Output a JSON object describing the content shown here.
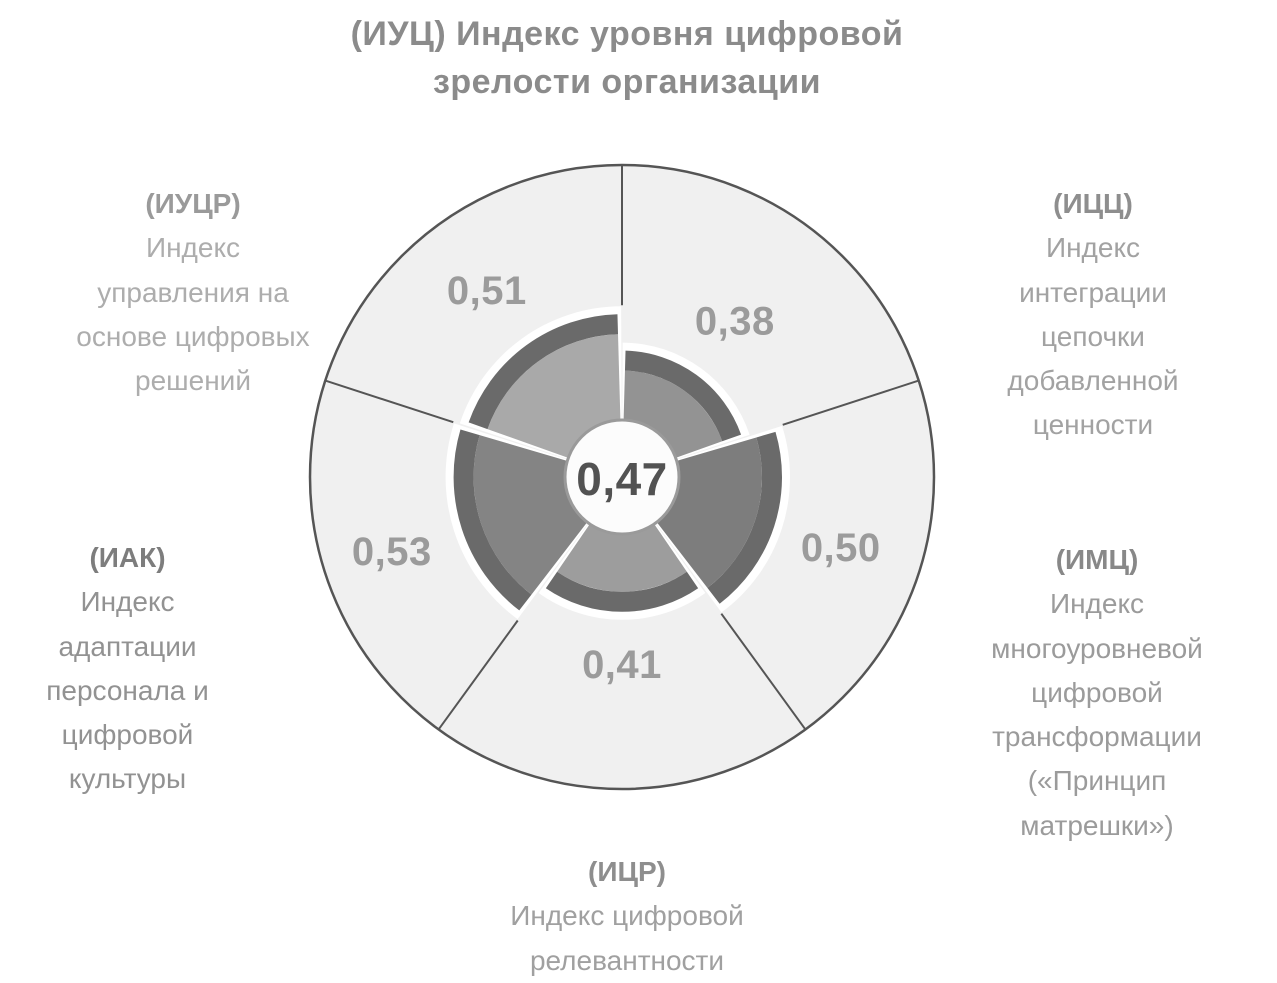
{
  "page": {
    "background": "#ffffff"
  },
  "chart_data": {
    "type": "pie",
    "subtype": "nightingale-rose-with-equal-sector-ring",
    "title": "(ИУЦ) Индекс уровня цифровой зрелости организации",
    "title_lines": [
      "(ИУЦ) Индекс уровня цифровой",
      "зрелости организации"
    ],
    "center_value": 0.47,
    "center_value_label": "0,47",
    "value_range": [
      0,
      1
    ],
    "legend_position": "around",
    "grid": false,
    "sectors": [
      {
        "abbr": "(ИЦЦ)",
        "label": "Индекс интеграции цепочки добавленной ценности",
        "label_lines": [
          "Индекс",
          "интеграции",
          "цепочки",
          "добавленной",
          "ценности"
        ],
        "value": 0.38,
        "value_label": "0,38",
        "angle_deg": 72,
        "abbr_color": "#8e8e8e",
        "text_color": "#a2a2a2"
      },
      {
        "abbr": "(ИМЦ)",
        "label": "Индекс многоуровневой цифровой трансформации («Принцип матрешки»)",
        "label_lines": [
          "Индекс",
          "многоуровневой",
          "цифровой",
          "трансформации",
          "(«Принцип",
          "матрешки»)"
        ],
        "value": 0.5,
        "value_label": "0,50",
        "angle_deg": 72,
        "abbr_color": "#888888",
        "text_color": "#9b9b9b"
      },
      {
        "abbr": "(ИЦР)",
        "label": "Индекс цифровой релевантности",
        "label_lines": [
          "Индекс цифровой",
          "релевантности"
        ],
        "value": 0.41,
        "value_label": "0,41",
        "angle_deg": 72,
        "abbr_color": "#8e8e8e",
        "text_color": "#a0a0a0"
      },
      {
        "abbr": "(ИАК)",
        "label": "Индекс адаптации персонала и цифровой культуры",
        "label_lines": [
          "Индекс",
          "адаптации",
          "персонала и",
          "цифровой",
          "культуры"
        ],
        "value": 0.53,
        "value_label": "0,53",
        "angle_deg": 72,
        "abbr_color": "#7d7d7d",
        "text_color": "#929292"
      },
      {
        "abbr": "(ИУЦР)",
        "label": "Индекс управления на основе цифровых решений",
        "label_lines": [
          "Индекс",
          "управления на",
          "основе цифровых",
          "решений"
        ],
        "value": 0.51,
        "value_label": "0,51",
        "angle_deg": 72,
        "abbr_color": "#9a9a9a",
        "text_color": "#adadad"
      }
    ],
    "colors": {
      "background": "#ffffff",
      "outer_circle_fill": "#f0f0f0",
      "outer_circle_stroke": "#555555",
      "band": "#6a6a6a",
      "backing": "#ffffff",
      "wedge_fills": [
        "#939393",
        "#7d7d7d",
        "#9d9d9d",
        "#848484",
        "#a9a9a9"
      ],
      "center_fill": "#fcfcfc",
      "center_stroke": "#9a9a9a",
      "center_text": "#525252",
      "value_label": "#9b9b9b",
      "title": "#8b8b8b"
    }
  }
}
